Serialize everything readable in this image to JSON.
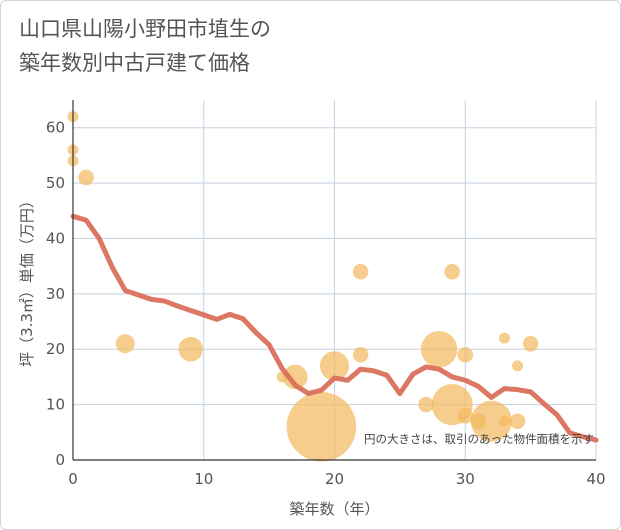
{
  "title": {
    "line1": "山口県山陽小野田市埴生の",
    "line2": "築年数別中古戸建て価格"
  },
  "chart_data": {
    "type": "scatter+line",
    "xlabel": "築年数（年）",
    "ylabel": "坪（3.3㎡）単価（万円）",
    "xlim": [
      0,
      40
    ],
    "ylim": [
      0,
      65
    ],
    "x_ticks": [
      0,
      10,
      20,
      30,
      40
    ],
    "y_ticks": [
      0,
      10,
      20,
      30,
      40,
      50,
      60
    ],
    "grid": true,
    "annotation": "円の大きさは、取引のあった物件面積を示す",
    "colors": {
      "line": "#d9705a",
      "bubble": "#f3b85c"
    },
    "line_series": {
      "name": "平均坪単価",
      "x": [
        0,
        1,
        2,
        3,
        4,
        5,
        6,
        7,
        8,
        9,
        10,
        11,
        12,
        13,
        14,
        15,
        16,
        17,
        18,
        19,
        20,
        21,
        22,
        23,
        24,
        25,
        26,
        27,
        28,
        29,
        30,
        31,
        32,
        33,
        34,
        35,
        36,
        37,
        38,
        39,
        40
      ],
      "y": [
        44,
        43.3,
        40,
        34.8,
        30.6,
        29.8,
        29,
        28.7,
        27.8,
        27,
        26.2,
        25.4,
        26.3,
        25.5,
        23,
        20.8,
        16.5,
        13.5,
        12,
        12.6,
        14.8,
        14.4,
        16.4,
        16.1,
        15.3,
        12,
        15.5,
        16.8,
        16.4,
        15,
        14.4,
        13.3,
        11.3,
        12.9,
        12.7,
        12.3,
        10.2,
        8.2,
        4.9,
        4.2,
        3.6
      ]
    },
    "bubbles": [
      {
        "x": 0,
        "y": 62,
        "size": 1
      },
      {
        "x": 0,
        "y": 56,
        "size": 1
      },
      {
        "x": 0,
        "y": 54,
        "size": 1
      },
      {
        "x": 1,
        "y": 51,
        "size": 2
      },
      {
        "x": 4,
        "y": 21,
        "size": 3
      },
      {
        "x": 9,
        "y": 20,
        "size": 5
      },
      {
        "x": 16,
        "y": 15,
        "size": 1
      },
      {
        "x": 17,
        "y": 15,
        "size": 5
      },
      {
        "x": 19,
        "y": 6,
        "size": 40
      },
      {
        "x": 20,
        "y": 17,
        "size": 7
      },
      {
        "x": 22,
        "y": 34,
        "size": 2
      },
      {
        "x": 22,
        "y": 19,
        "size": 2
      },
      {
        "x": 27,
        "y": 10,
        "size": 2
      },
      {
        "x": 28,
        "y": 20,
        "size": 11
      },
      {
        "x": 29,
        "y": 34,
        "size": 2
      },
      {
        "x": 29,
        "y": 10,
        "size": 14
      },
      {
        "x": 30,
        "y": 19,
        "size": 2
      },
      {
        "x": 30,
        "y": 8,
        "size": 2
      },
      {
        "x": 31,
        "y": 7,
        "size": 2
      },
      {
        "x": 32,
        "y": 7,
        "size": 14
      },
      {
        "x": 33,
        "y": 22,
        "size": 1
      },
      {
        "x": 33,
        "y": 7,
        "size": 1
      },
      {
        "x": 34,
        "y": 17,
        "size": 1
      },
      {
        "x": 34,
        "y": 7,
        "size": 2
      },
      {
        "x": 35,
        "y": 21,
        "size": 2
      }
    ]
  }
}
